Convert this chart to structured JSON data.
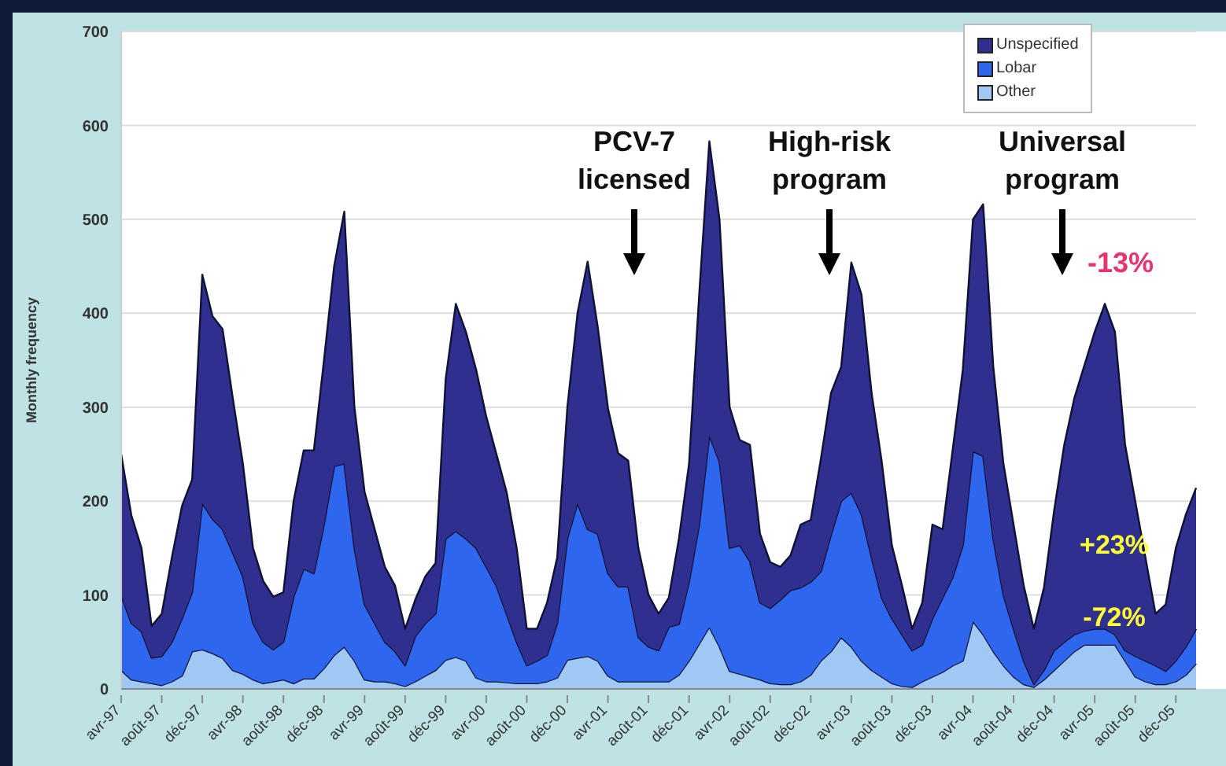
{
  "chart_data": {
    "type": "area",
    "stacked": true,
    "ylabel": "Monthly frequency",
    "categories": [
      "avr-97",
      null,
      null,
      null,
      "août-97",
      null,
      null,
      null,
      "déc-97",
      null,
      null,
      null,
      "avr-98",
      null,
      null,
      null,
      "août-98",
      null,
      null,
      null,
      "déc-98",
      null,
      null,
      null,
      "avr-99",
      null,
      null,
      null,
      "août-99",
      null,
      null,
      null,
      "déc-99",
      null,
      null,
      null,
      "avr-00",
      null,
      null,
      null,
      "août-00",
      null,
      null,
      null,
      "déc-00",
      null,
      null,
      null,
      "avr-01",
      null,
      null,
      null,
      "août-01",
      null,
      null,
      null,
      "déc-01",
      null,
      null,
      null,
      "avr-02",
      null,
      null,
      null,
      "août-02",
      null,
      null,
      null,
      "déc-02",
      null,
      null,
      null,
      "avr-03",
      null,
      null,
      null,
      "août-03",
      null,
      null,
      null,
      "déc-03",
      null,
      null,
      null,
      "avr-04",
      null,
      null,
      null,
      "août-04",
      null,
      null,
      null,
      "déc-04",
      null,
      null,
      null,
      "avr-05",
      null,
      null,
      null,
      "août-05",
      null,
      null,
      null,
      "déc-05",
      null,
      null
    ],
    "series": [
      {
        "name": "Other",
        "color": "#9fc8f4",
        "values": [
          20,
          10,
          8,
          6,
          4,
          8,
          14,
          40,
          42,
          38,
          33,
          20,
          16,
          10,
          6,
          8,
          10,
          6,
          11,
          11,
          22,
          36,
          45,
          30,
          10,
          8,
          8,
          6,
          3,
          8,
          14,
          20,
          31,
          34,
          30,
          12,
          8,
          8,
          7,
          6,
          6,
          6,
          8,
          12,
          31,
          33,
          35,
          30,
          14,
          8,
          8,
          8,
          8,
          8,
          8,
          15,
          30,
          48,
          66,
          45,
          19,
          16,
          13,
          10,
          6,
          5,
          5,
          8,
          15,
          30,
          40,
          55,
          45,
          30,
          20,
          13,
          6,
          3,
          2,
          8,
          13,
          18,
          25,
          30,
          72,
          58,
          40,
          25,
          13,
          5,
          2,
          10,
          20,
          30,
          40,
          47,
          47,
          47,
          47,
          30,
          13,
          8,
          5,
          5,
          8,
          15,
          27
        ]
      },
      {
        "name": "Lobar",
        "color": "#2f66ee",
        "values": [
          80,
          60,
          53,
          27,
          31,
          42,
          61,
          63,
          156,
          143,
          137,
          125,
          104,
          60,
          44,
          34,
          40,
          92,
          117,
          112,
          153,
          201,
          195,
          120,
          80,
          62,
          42,
          34,
          22,
          48,
          56,
          60,
          129,
          134,
          130,
          138,
          122,
          102,
          73,
          44,
          19,
          24,
          28,
          58,
          129,
          165,
          135,
          135,
          109,
          101,
          101,
          47,
          37,
          33,
          58,
          54,
          84,
          127,
          204,
          197,
          131,
          137,
          123,
          82,
          80,
          90,
          100,
          100,
          99,
          95,
          124,
          145,
          164,
          156,
          120,
          84,
          69,
          55,
          39,
          39,
          62,
          79,
          94,
          123,
          181,
          190,
          120,
          75,
          51,
          25,
          3,
          10,
          21,
          20,
          18,
          15,
          17,
          17,
          11,
          11,
          22,
          22,
          20,
          14,
          22,
          30,
          37
        ]
      },
      {
        "name": "Unspecified",
        "color": "#2e2f8e",
        "values": [
          150,
          115,
          89,
          34,
          45,
          90,
          120,
          120,
          243,
          216,
          213,
          165,
          120,
          80,
          65,
          56,
          53,
          102,
          126,
          131,
          175,
          213,
          268,
          150,
          120,
          100,
          80,
          70,
          39,
          39,
          50,
          54,
          170,
          242,
          220,
          190,
          160,
          140,
          130,
          100,
          39,
          34,
          56,
          70,
          140,
          202,
          285,
          220,
          176,
          142,
          134,
          95,
          55,
          39,
          31,
          91,
          126,
          245,
          313,
          258,
          150,
          112,
          124,
          73,
          49,
          35,
          37,
          67,
          66,
          120,
          151,
          143,
          245,
          234,
          175,
          145,
          78,
          52,
          23,
          45,
          100,
          73,
          136,
          187,
          247,
          268,
          183,
          140,
          111,
          80,
          59,
          88,
          149,
          210,
          252,
          283,
          316,
          346,
          322,
          219,
          165,
          110,
          55,
          71,
          120,
          141,
          150
        ]
      }
    ],
    "ylim": [
      0,
      700
    ],
    "yticks": [
      0,
      100,
      200,
      300,
      400,
      500,
      600,
      700
    ],
    "grid": "y",
    "legend": "top right",
    "annotations": [
      "PCV-7 licensed",
      "High-risk program",
      "Universal program",
      "-13%",
      "+23%",
      "-72%"
    ]
  }
}
